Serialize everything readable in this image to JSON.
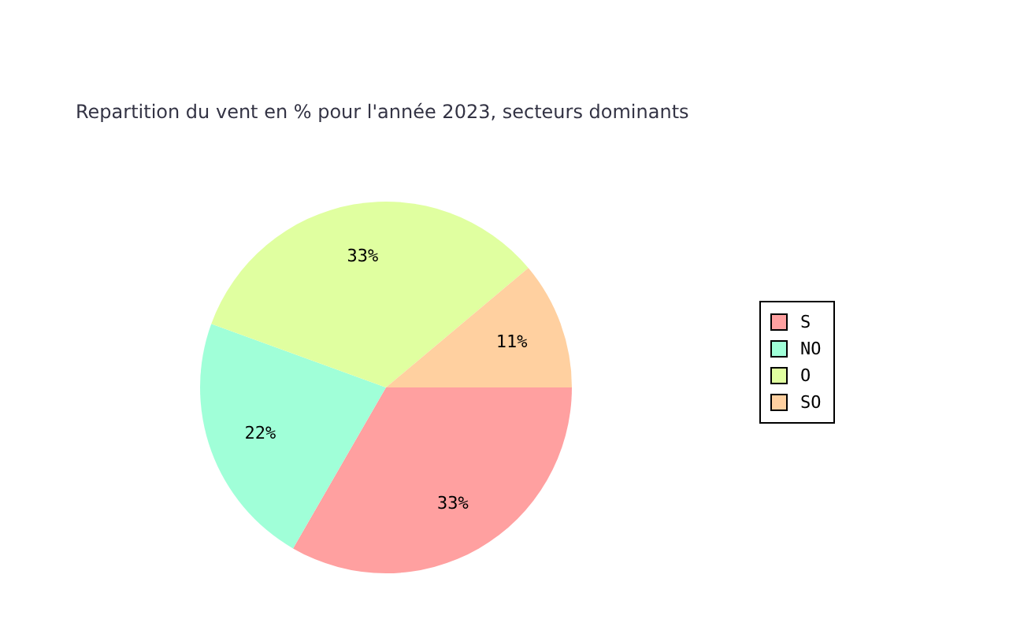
{
  "chart_data": {
    "type": "pie",
    "title": "Repartition du vent en % pour l'année 2023, secteurs dominants",
    "categories": [
      "S",
      "NO",
      "O",
      "SO"
    ],
    "values": [
      33,
      22,
      33,
      11
    ],
    "colors": [
      "#ffa0a0",
      "#a0ffd8",
      "#e0ffa0",
      "#ffd0a0"
    ],
    "value_labels": [
      "33%",
      "22%",
      "33%",
      "11%"
    ],
    "legend": "right"
  }
}
